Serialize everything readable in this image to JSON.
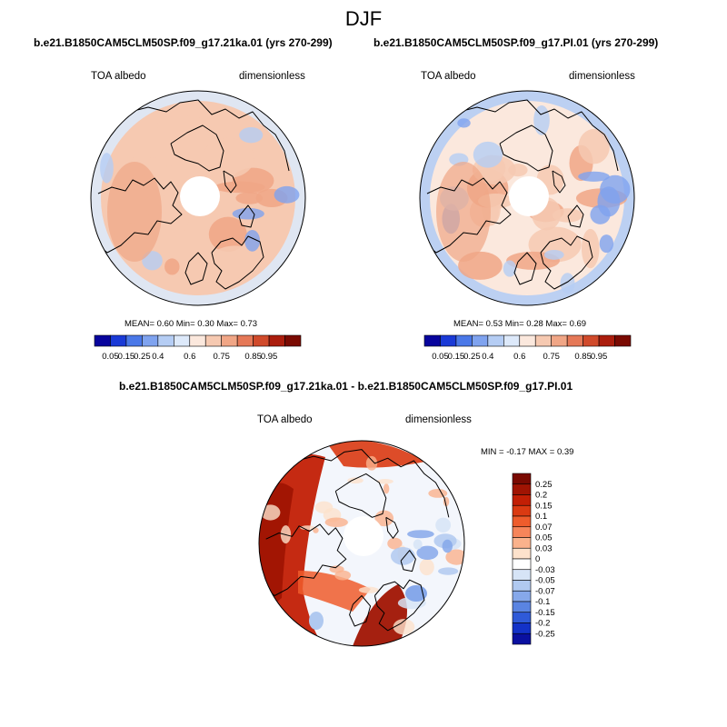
{
  "figure": {
    "title": "DJF",
    "panels": [
      {
        "title": "b.e21.B1850CAM5CLM50SP.f09_g17.21ka.01 (yrs 270-299)",
        "variable": "TOA albedo",
        "units": "dimensionless",
        "stats": {
          "mean_label": "MEAN=",
          "mean": "0.60",
          "min_label": "Min=",
          "min": "0.30",
          "max_label": "Max=",
          "max": "0.73"
        }
      },
      {
        "title": "b.e21.B1850CAM5CLM50SP.f09_g17.PI.01 (yrs 270-299)",
        "variable": "TOA albedo",
        "units": "dimensionless",
        "stats": {
          "mean_label": "MEAN=",
          "mean": "0.53",
          "min_label": "Min=",
          "min": "0.28",
          "max_label": "Max=",
          "max": "0.69"
        }
      },
      {
        "title": "b.e21.B1850CAM5CLM50SP.f09_g17.21ka.01 - b.e21.B1850CAM5CLM50SP.f09_g17.PI.01",
        "variable": "TOA albedo",
        "units": "dimensionless",
        "stats": {
          "min_label": "MIN =",
          "min": "-0.17",
          "max_label": "MAX =",
          "max": "0.39"
        }
      }
    ]
  },
  "chart_data": [
    {
      "type": "heatmap",
      "projection": "north-polar-stereographic",
      "title": "b.e21.B1850CAM5CLM50SP.f09_g17.21ka.01 (yrs 270-299)",
      "variable": "TOA albedo",
      "units": "dimensionless",
      "mean": 0.6,
      "min": 0.3,
      "max": 0.73,
      "colorbar": {
        "orientation": "horizontal",
        "levels": [
          0.05,
          0.15,
          0.25,
          0.4,
          0.6,
          0.75,
          0.85,
          0.95
        ],
        "tick_labels": [
          "0.05",
          "0.15",
          "0.25",
          "0.4",
          "0.6",
          "0.75",
          "0.85",
          "0.95"
        ],
        "colors": [
          "#08049d",
          "#1a3ad6",
          "#4a78e8",
          "#7fa3ef",
          "#b5cdf4",
          "#dde9fa",
          "#fbe8dd",
          "#f6c9b1",
          "#f0a686",
          "#e57857",
          "#d04a2b",
          "#ab1d0d",
          "#7a0a02"
        ]
      }
    },
    {
      "type": "heatmap",
      "projection": "north-polar-stereographic",
      "title": "b.e21.B1850CAM5CLM50SP.f09_g17.PI.01 (yrs 270-299)",
      "variable": "TOA albedo",
      "units": "dimensionless",
      "mean": 0.53,
      "min": 0.28,
      "max": 0.69,
      "colorbar": {
        "orientation": "horizontal",
        "levels": [
          0.05,
          0.15,
          0.25,
          0.4,
          0.6,
          0.75,
          0.85,
          0.95
        ],
        "tick_labels": [
          "0.05",
          "0.15",
          "0.25",
          "0.4",
          "0.6",
          "0.75",
          "0.85",
          "0.95"
        ],
        "colors": [
          "#08049d",
          "#1a3ad6",
          "#4a78e8",
          "#7fa3ef",
          "#b5cdf4",
          "#dde9fa",
          "#fbe8dd",
          "#f6c9b1",
          "#f0a686",
          "#e57857",
          "#d04a2b",
          "#ab1d0d",
          "#7a0a02"
        ]
      }
    },
    {
      "type": "heatmap",
      "projection": "north-polar-stereographic",
      "title": "b.e21.B1850CAM5CLM50SP.f09_g17.21ka.01 - b.e21.B1850CAM5CLM50SP.f09_g17.PI.01",
      "variable": "TOA albedo",
      "units": "dimensionless",
      "min": -0.17,
      "max": 0.39,
      "colorbar": {
        "orientation": "vertical",
        "levels": [
          0.25,
          0.2,
          0.15,
          0.1,
          0.07,
          0.05,
          0.03,
          0,
          -0.03,
          -0.05,
          -0.07,
          -0.1,
          -0.15,
          -0.2,
          -0.25
        ],
        "tick_labels": [
          "0.25",
          "0.2",
          "0.15",
          "0.1",
          "0.07",
          "0.05",
          "0.03",
          "0",
          "-0.03",
          "-0.05",
          "-0.07",
          "-0.1",
          "-0.15",
          "-0.2",
          "-0.25"
        ],
        "colors": [
          "#7a0a02",
          "#a01403",
          "#c21f05",
          "#da3a12",
          "#ee5c2c",
          "#f6855a",
          "#fab28c",
          "#fde2cc",
          "#ffffff",
          "#d6e4f6",
          "#b0c9f0",
          "#86a8ea",
          "#5a84e2",
          "#2f5ad8",
          "#1332c8",
          "#0a10a0"
        ]
      }
    }
  ]
}
